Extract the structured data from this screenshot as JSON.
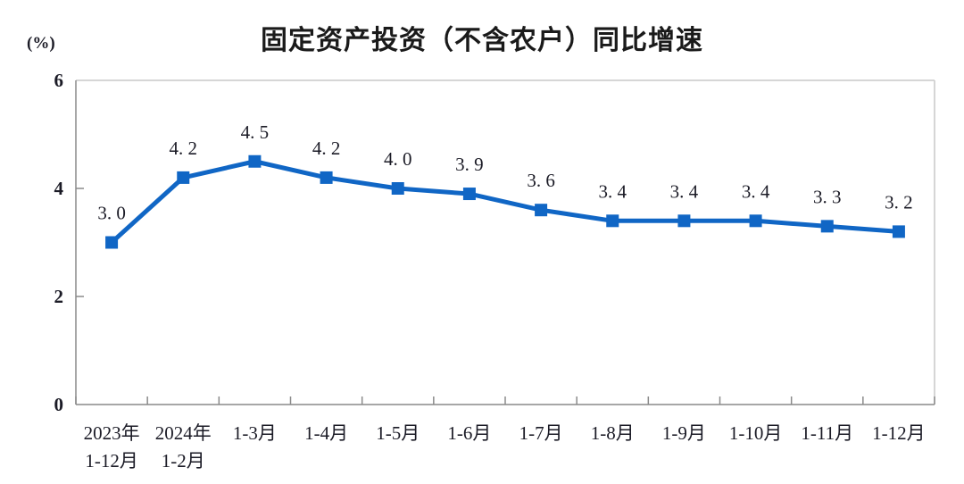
{
  "chart_data": {
    "type": "line",
    "title": "固定资产投资（不含农户）同比增速",
    "unit_label": "(%)",
    "categories": [
      "2023年\n1-12月",
      "2024年\n1-2月",
      "1-3月",
      "1-4月",
      "1-5月",
      "1-6月",
      "1-7月",
      "1-8月",
      "1-9月",
      "1-10月",
      "1-11月",
      "1-12月"
    ],
    "values": [
      3.0,
      4.2,
      4.5,
      4.2,
      4.0,
      3.9,
      3.6,
      3.4,
      3.4,
      3.4,
      3.3,
      3.2
    ],
    "point_labels": [
      "3. 0",
      "4. 2",
      "4. 5",
      "4. 2",
      "4. 0",
      "3. 9",
      "3. 6",
      "3. 4",
      "3. 4",
      "3. 4",
      "3. 3",
      "3. 2"
    ],
    "ylim": [
      0,
      6
    ],
    "yticks": [
      0,
      2,
      4,
      6
    ],
    "line_color": "#1066c5",
    "marker": "square",
    "grid": false,
    "legend": false,
    "axis_color": "#8a8a8a",
    "border_color": "#c9c9c9",
    "text_color": "#1b1b26"
  }
}
